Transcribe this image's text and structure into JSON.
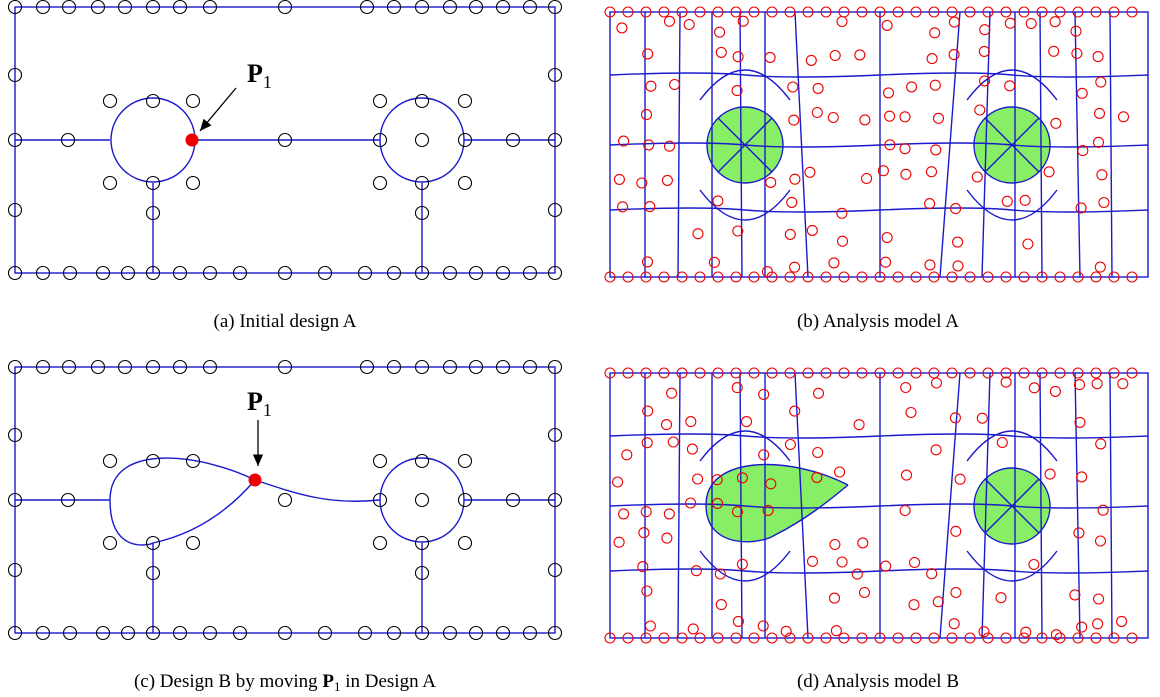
{
  "panels": [
    {
      "caption": "(a) Initial design A",
      "point_label": {
        "symbol": "P",
        "subscript": "1"
      }
    },
    {
      "caption": "(b) Analysis model A"
    },
    {
      "caption": {
        "before": "(c) Design B by moving ",
        "symbol": "P",
        "subscript": "1",
        "after": " in Design A"
      },
      "point_label": {
        "symbol": "P",
        "subscript": "1"
      }
    },
    {
      "caption": "(d) Analysis model B"
    }
  ]
}
